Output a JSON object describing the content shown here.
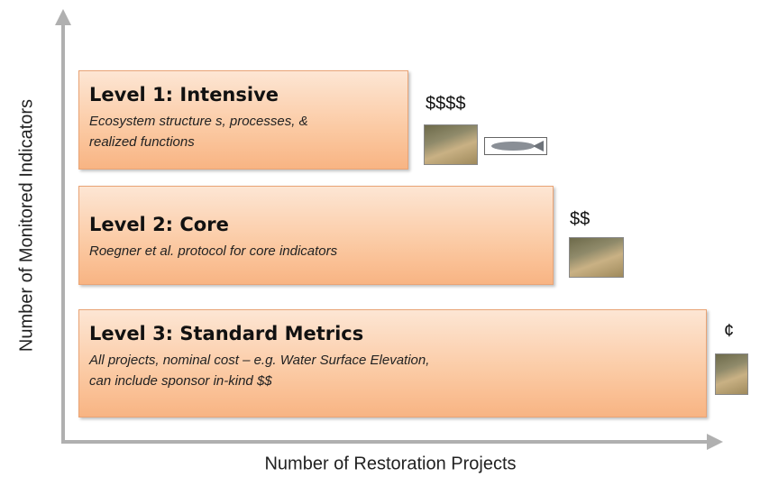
{
  "axes": {
    "y_label": "Number of Monitored Indicators",
    "x_label": "Number of Restoration Projects"
  },
  "levels": [
    {
      "title": "Level 1: Intensive",
      "description": [
        "Ecosystem structure s, processes, &",
        "realized functions"
      ],
      "cost": "$$$$"
    },
    {
      "title": "Level 2: Core",
      "description": [
        "Roegner et al. protocol for core indicators"
      ],
      "cost": "$$"
    },
    {
      "title": "Level 3: Standard Metrics",
      "description": [
        "All projects, nominal cost – e.g. Water Surface Elevation,",
        "can include sponsor in-kind $$"
      ],
      "cost": "¢"
    }
  ]
}
